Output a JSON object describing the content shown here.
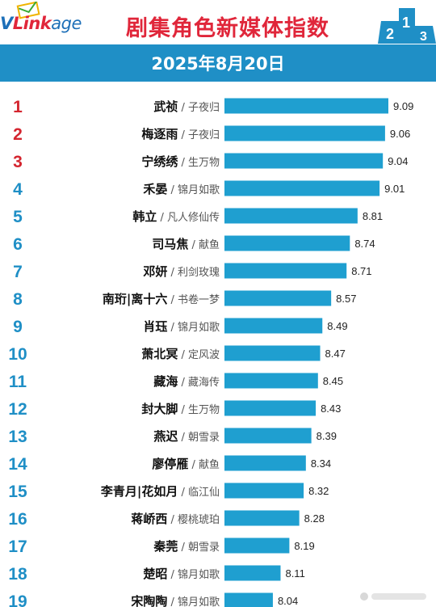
{
  "header": {
    "logo_v": "V",
    "logo_link": "Link",
    "logo_age": "age",
    "title": "剧集角色新媒体指数",
    "date": "2025年8月20日"
  },
  "colors": {
    "rank_top3": "#d4252f",
    "rank_other": "#1f8fc6",
    "bar": "#1f9fd0",
    "banner": "#1f8fc6",
    "title": "#e0263a"
  },
  "chart_data": {
    "type": "bar",
    "orientation": "horizontal",
    "title": "剧集角色新媒体指数",
    "subtitle": "2025年8月20日",
    "axis_range": [
      7.6,
      9.09
    ],
    "rows": [
      {
        "rank": "1",
        "role": "武祯",
        "drama": "子夜归",
        "value": 9.09
      },
      {
        "rank": "2",
        "role": "梅逐雨",
        "drama": "子夜归",
        "value": 9.06
      },
      {
        "rank": "3",
        "role": "宁绣绣",
        "drama": "生万物",
        "value": 9.04
      },
      {
        "rank": "4",
        "role": "禾晏",
        "drama": "锦月如歌",
        "value": 9.01
      },
      {
        "rank": "5",
        "role": "韩立",
        "drama": "凡人修仙传",
        "value": 8.81
      },
      {
        "rank": "6",
        "role": "司马焦",
        "drama": "献鱼",
        "value": 8.74
      },
      {
        "rank": "7",
        "role": "邓妍",
        "drama": "利剑玫瑰",
        "value": 8.71
      },
      {
        "rank": "8",
        "role": "南珩|离十六",
        "drama": "书卷一梦",
        "value": 8.57
      },
      {
        "rank": "9",
        "role": "肖珏",
        "drama": "锦月如歌",
        "value": 8.49
      },
      {
        "rank": "10",
        "role": "萧北冥",
        "drama": "定风波",
        "value": 8.47
      },
      {
        "rank": "11",
        "role": "藏海",
        "drama": "藏海传",
        "value": 8.45
      },
      {
        "rank": "12",
        "role": "封大脚",
        "drama": "生万物",
        "value": 8.43
      },
      {
        "rank": "13",
        "role": "燕迟",
        "drama": "朝雪录",
        "value": 8.39
      },
      {
        "rank": "14",
        "role": "廖停雁",
        "drama": "献鱼",
        "value": 8.34
      },
      {
        "rank": "15",
        "role": "李青月|花如月",
        "drama": "临江仙",
        "value": 8.32
      },
      {
        "rank": "16",
        "role": "蒋峤西",
        "drama": "樱桃琥珀",
        "value": 8.28
      },
      {
        "rank": "17",
        "role": "秦莞",
        "drama": "朝雪录",
        "value": 8.19
      },
      {
        "rank": "18",
        "role": "楚昭",
        "drama": "锦月如歌",
        "value": 8.11
      },
      {
        "rank": "19",
        "role": "宋陶陶",
        "drama": "锦月如歌",
        "value": 8.04
      }
    ]
  }
}
